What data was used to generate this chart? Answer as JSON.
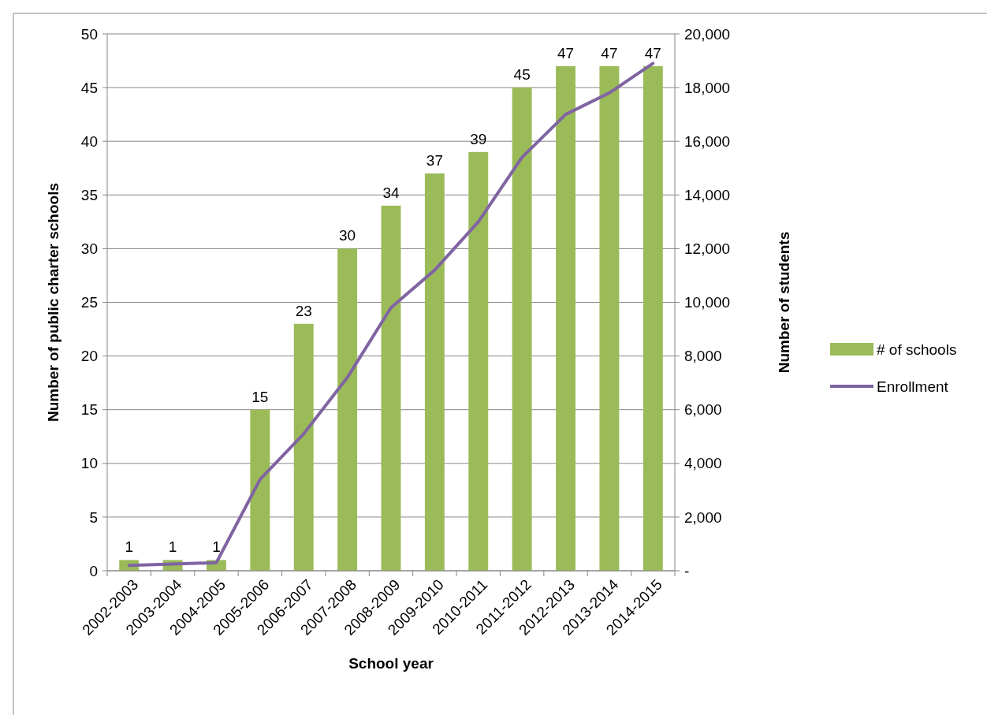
{
  "chart_data": {
    "type": "bar",
    "xlabel": "School year",
    "ylabel": "Number of public charter schools",
    "y2label": "Number of students",
    "categories": [
      "2002-2003",
      "2003-2004",
      "2004-2005",
      "2005-2006",
      "2006-2007",
      "2007-2008",
      "2008-2009",
      "2009-2010",
      "2010-2011",
      "2011-2012",
      "2012-2013",
      "2013-2014",
      "2014-2015"
    ],
    "series": [
      {
        "name": "# of schools",
        "color": "#9bbb59",
        "values": [
          1,
          1,
          1,
          15,
          23,
          30,
          34,
          37,
          39,
          45,
          47,
          47,
          47
        ],
        "data_labels": true
      },
      {
        "name": "Enrollment",
        "type": "line",
        "axis": "y2",
        "color": "#8064a2",
        "values": [
          200,
          250,
          300,
          3400,
          5100,
          7200,
          9800,
          11200,
          13000,
          15400,
          17000,
          17800,
          18900
        ]
      }
    ],
    "ylim": [
      0,
      50
    ],
    "yticks": [
      0,
      5,
      10,
      15,
      20,
      25,
      30,
      35,
      40,
      45,
      50
    ],
    "y2lim": [
      0,
      20000
    ],
    "y2ticks": [
      {
        "value": 0,
        "label": "-"
      },
      {
        "value": 2000,
        "label": "2,000"
      },
      {
        "value": 4000,
        "label": "4,000"
      },
      {
        "value": 6000,
        "label": "6,000"
      },
      {
        "value": 8000,
        "label": "8,000"
      },
      {
        "value": 10000,
        "label": "10,000"
      },
      {
        "value": 12000,
        "label": "12,000"
      },
      {
        "value": 14000,
        "label": "14,000"
      },
      {
        "value": 16000,
        "label": "16,000"
      },
      {
        "value": 18000,
        "label": "18,000"
      },
      {
        "value": 20000,
        "label": "20,000"
      }
    ],
    "grid": "y",
    "legend": "right",
    "marker": "none",
    "line_style": "solid"
  }
}
